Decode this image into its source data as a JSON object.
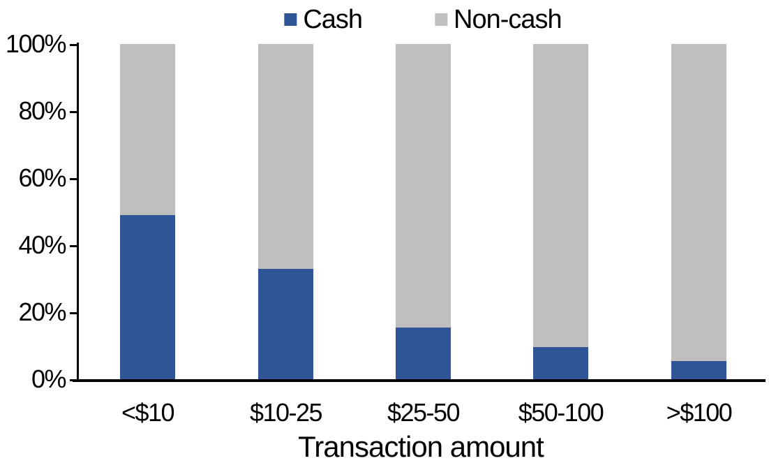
{
  "chart_data": {
    "type": "bar",
    "subtype": "stacked-100-percent",
    "title": "",
    "xlabel": "Transaction amount",
    "ylabel": "",
    "categories": [
      "<$10",
      "$10-25",
      "$25-50",
      "$50-100",
      ">$100"
    ],
    "series": [
      {
        "name": "Cash",
        "color": "#2F5596",
        "values": [
          49,
          33,
          15.5,
          9.5,
          5.5
        ]
      },
      {
        "name": "Non-cash",
        "color": "#BFBFBF",
        "values": [
          51,
          67,
          84.5,
          90.5,
          94.5
        ]
      }
    ],
    "ylim": [
      0,
      100
    ],
    "ytick_values": [
      0,
      20,
      40,
      60,
      80,
      100
    ],
    "ytick_labels": [
      "0%",
      "20%",
      "40%",
      "60%",
      "80%",
      "100%"
    ],
    "grid": false,
    "legend_position": "top-center",
    "axis_color": "#000000",
    "background_color": "#FFFFFF",
    "text_color": "#000000"
  }
}
